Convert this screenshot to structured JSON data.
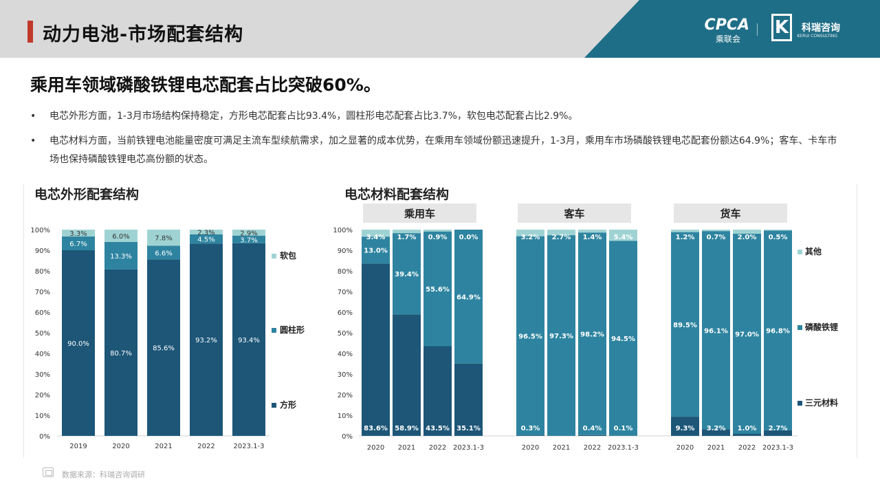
{
  "header": {
    "title": "动力电池-市场配套结构",
    "logo_cpca": "CPCA",
    "logo_cpca_sub": "乘联会",
    "logo_kerui": "科瑞咨询",
    "logo_kerui_en": "KERUI CONSULTING"
  },
  "headline": "乘用车领域磷酸铁锂电芯配套占比突破60%。",
  "bullets": [
    "电芯外形方面，1-3月市场结构保持稳定，方形电芯配套占比93.4%，圆柱形电芯配套占比3.7%，软包电芯配套占比2.9%。",
    "电芯材料方面，当前铁锂电池能量密度可满足主流车型续航需求，加之显著的成本优势，在乘用车领域份额迅速提升，1-3月，乘用车市场磷酸铁锂电芯配套份额达64.9%；客车、卡车市场也保持磷酸铁锂电芯高份额的状态。"
  ],
  "bullet_marker": "•",
  "source": "数据来源：科瑞咨询调研",
  "colors": {
    "dark": "#1d5677",
    "mid": "#2e84a0",
    "light": "#9fd3d3",
    "panel_header": "#e6e6e6"
  },
  "chart_data": [
    {
      "type": "bar",
      "stacked": true,
      "title": "电芯外形配套结构",
      "categories": [
        "2019",
        "2020",
        "2021",
        "2022",
        "2023.1-3"
      ],
      "ylim": [
        0,
        100
      ],
      "yticks": [
        "0%",
        "10%",
        "20%",
        "30%",
        "40%",
        "50%",
        "60%",
        "70%",
        "80%",
        "90%",
        "100%"
      ],
      "legend_position": "right",
      "series": [
        {
          "name": "方形",
          "values": [
            90.0,
            80.7,
            85.6,
            93.2,
            93.4
          ],
          "labels": [
            "90.0%",
            "80.7%",
            "85.6%",
            "93.2%",
            "93.4%"
          ],
          "color": "#1d5677"
        },
        {
          "name": "圆柱形",
          "values": [
            6.7,
            13.3,
            6.6,
            4.5,
            3.7
          ],
          "labels": [
            "6.7%",
            "13.3%",
            "6.6%",
            "4.5%",
            "3.7%"
          ],
          "color": "#2e84a0"
        },
        {
          "name": "软包",
          "values": [
            3.3,
            6.0,
            7.8,
            2.3,
            2.9
          ],
          "labels": [
            "3.3%",
            "6.0%",
            "7.8%",
            "2.3%",
            "2.9%"
          ],
          "color": "#9fd3d3"
        }
      ]
    },
    {
      "type": "bar",
      "stacked": true,
      "title": "电芯材料配套结构",
      "ylim": [
        0,
        100
      ],
      "yticks": [
        "0%",
        "10%",
        "20%",
        "30%",
        "40%",
        "50%",
        "60%",
        "70%",
        "80%",
        "90%",
        "100%"
      ],
      "legend_position": "right",
      "legend": [
        {
          "name": "其他",
          "color": "#9fd3d3"
        },
        {
          "name": "磷酸铁锂",
          "color": "#2e84a0"
        },
        {
          "name": "三元材料",
          "color": "#1d5677"
        }
      ],
      "panels": [
        {
          "name": "乘用车",
          "categories": [
            "2020",
            "2021",
            "2022",
            "2023.1-3"
          ],
          "series": [
            {
              "name": "三元材料",
              "values": [
                83.6,
                58.9,
                43.5,
                35.1
              ],
              "labels": [
                "83.6%",
                "58.9%",
                "43.5%",
                "35.1%"
              ]
            },
            {
              "name": "磷酸铁锂",
              "values": [
                13.0,
                39.4,
                55.6,
                64.9
              ],
              "labels": [
                "13.0%",
                "39.4%",
                "55.6%",
                "64.9%"
              ]
            },
            {
              "name": "其他",
              "values": [
                3.4,
                1.7,
                0.9,
                0.0
              ],
              "labels": [
                "3.4%",
                "1.7%",
                "0.9%",
                "0.0%"
              ]
            }
          ]
        },
        {
          "name": "客车",
          "categories": [
            "2020",
            "2021",
            "2022",
            "2023.1-3"
          ],
          "series": [
            {
              "name": "三元材料",
              "values": [
                0.3,
                0.0,
                0.4,
                0.1
              ],
              "labels": [
                "0.3%",
                "",
                "0.4%",
                "0.1%"
              ]
            },
            {
              "name": "磷酸铁锂",
              "values": [
                96.5,
                97.3,
                98.2,
                94.5
              ],
              "labels": [
                "96.5%",
                "97.3%",
                "98.2%",
                "94.5%"
              ]
            },
            {
              "name": "其他",
              "values": [
                3.2,
                2.7,
                1.4,
                5.4
              ],
              "labels": [
                "3.2%",
                "2.7%",
                "1.4%",
                "5.4%"
              ]
            }
          ]
        },
        {
          "name": "货车",
          "categories": [
            "2020",
            "2021",
            "2022",
            "2023.1-3"
          ],
          "series": [
            {
              "name": "三元材料",
              "values": [
                9.3,
                3.2,
                1.0,
                2.7
              ],
              "labels": [
                "9.3%",
                "3.2%",
                "1.0%",
                "2.7%"
              ]
            },
            {
              "name": "磷酸铁锂",
              "values": [
                89.5,
                96.1,
                97.0,
                96.8
              ],
              "labels": [
                "89.5%",
                "96.1%",
                "97.0%",
                "96.8%"
              ]
            },
            {
              "name": "其他",
              "values": [
                1.2,
                0.7,
                2.0,
                0.5
              ],
              "labels": [
                "1.2%",
                "0.7%",
                "2.0%",
                "0.5%"
              ]
            }
          ]
        }
      ]
    }
  ]
}
